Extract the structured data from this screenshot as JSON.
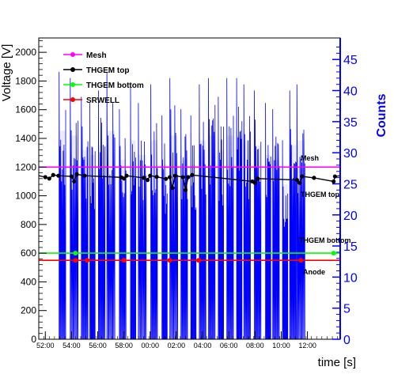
{
  "chart_data": {
    "type": "line",
    "title": "",
    "xlabel": "time [s]",
    "ylabel": "Voltage [V]",
    "y2label": "Counts",
    "x_tick_labels": [
      "52:00",
      "54:00",
      "56:00",
      "58:00",
      "00:00",
      "02:00",
      "04:00",
      "06:00",
      "08:00",
      "10:00",
      "12:00"
    ],
    "x_tick_minutes": [
      0,
      2,
      4,
      6,
      8,
      10,
      12,
      14,
      16,
      18,
      20
    ],
    "xlim_minutes": [
      -0.5,
      22.5
    ],
    "ylim": [
      0,
      2100
    ],
    "y_ticks": [
      0,
      200,
      400,
      600,
      800,
      1000,
      1200,
      1400,
      1600,
      1800,
      2000
    ],
    "y2lim": [
      0,
      48.46
    ],
    "y2_ticks": [
      0,
      5,
      10,
      15,
      20,
      25,
      30,
      35,
      40,
      45
    ],
    "legend_position": "top-left",
    "legend": [
      "Mesh",
      "THGEM top",
      "THGEM bottom",
      "SRWELL"
    ],
    "annotations": [
      "Mesh",
      "THGEM top",
      "THGEM bottom",
      "Anode"
    ],
    "colors": {
      "mesh": "#ff00ff",
      "thgem_top": "#000000",
      "thgem_bottom": "#00ff00",
      "srwell": "#ff0000",
      "counts": "#0000ff"
    },
    "series": [
      {
        "name": "Mesh",
        "color": "#ff00ff",
        "points": [
          [
            -0.5,
            1200
          ],
          [
            22.5,
            1200
          ]
        ]
      },
      {
        "name": "THGEM top",
        "color": "#000000",
        "points": [
          [
            -0.5,
            1140
          ],
          [
            0,
            1130
          ],
          [
            0.3,
            1120
          ],
          [
            0.6,
            1145
          ],
          [
            1.0,
            1140
          ],
          [
            2.0,
            1135
          ],
          [
            2.2,
            1100
          ],
          [
            2.4,
            1150
          ],
          [
            3.0,
            1140
          ],
          [
            5.8,
            1128
          ],
          [
            6.0,
            1120
          ],
          [
            6.2,
            1140
          ],
          [
            7.5,
            1125
          ],
          [
            7.8,
            1110
          ],
          [
            8.0,
            1140
          ],
          [
            8.5,
            1132
          ],
          [
            9.2,
            1118
          ],
          [
            9.5,
            1130
          ],
          [
            9.7,
            1055
          ],
          [
            9.9,
            1140
          ],
          [
            10.5,
            1130
          ],
          [
            10.7,
            1040
          ],
          [
            10.9,
            1130
          ],
          [
            11.2,
            1145
          ],
          [
            15.8,
            1100
          ],
          [
            16.0,
            1090
          ],
          [
            16.2,
            1120
          ],
          [
            19.2,
            1110
          ],
          [
            19.4,
            1090
          ],
          [
            19.6,
            1135
          ],
          [
            20.5,
            1125
          ],
          [
            22.0,
            1100
          ],
          [
            22.1,
            1135
          ],
          [
            22.5,
            1140
          ]
        ]
      },
      {
        "name": "THGEM bottom",
        "color": "#00ff00",
        "points": [
          [
            -0.5,
            600
          ],
          [
            22.5,
            600
          ]
        ],
        "markers_x": [
          2.3,
          22.0
        ]
      },
      {
        "name": "SRWELL",
        "color": "#ff0000",
        "points": [
          [
            -0.5,
            550
          ],
          [
            22.5,
            550
          ]
        ],
        "markers_x": [
          2.3,
          3.2,
          6.0,
          9.5,
          11.7,
          19.5
        ]
      }
    ],
    "counts_bursts": [
      {
        "x": 1.3,
        "w": 0.5,
        "peak": 43
      },
      {
        "x": 2.2,
        "w": 0.6,
        "peak": 42
      },
      {
        "x": 3.0,
        "w": 0.5,
        "peak": 39
      },
      {
        "x": 3.6,
        "w": 0.4,
        "peak": 38
      },
      {
        "x": 4.3,
        "w": 0.5,
        "peak": 40
      },
      {
        "x": 5.0,
        "w": 0.6,
        "peak": 43
      },
      {
        "x": 5.9,
        "w": 0.5,
        "peak": 37
      },
      {
        "x": 6.7,
        "w": 0.4,
        "peak": 41
      },
      {
        "x": 7.4,
        "w": 0.6,
        "peak": 38
      },
      {
        "x": 8.3,
        "w": 0.5,
        "peak": 41
      },
      {
        "x": 9.1,
        "w": 0.4,
        "peak": 36
      },
      {
        "x": 9.8,
        "w": 0.6,
        "peak": 42
      },
      {
        "x": 10.6,
        "w": 0.5,
        "peak": 37
      },
      {
        "x": 11.3,
        "w": 0.4,
        "peak": 36
      },
      {
        "x": 12.0,
        "w": 0.5,
        "peak": 41
      },
      {
        "x": 12.7,
        "w": 0.5,
        "peak": 42
      },
      {
        "x": 13.4,
        "w": 0.4,
        "peak": 39
      },
      {
        "x": 14.1,
        "w": 0.5,
        "peak": 42
      },
      {
        "x": 14.8,
        "w": 0.4,
        "peak": 42
      },
      {
        "x": 15.4,
        "w": 0.5,
        "peak": 41
      },
      {
        "x": 16.2,
        "w": 0.5,
        "peak": 40
      },
      {
        "x": 17.0,
        "w": 0.4,
        "peak": 38
      },
      {
        "x": 17.6,
        "w": 0.5,
        "peak": 37
      },
      {
        "x": 18.3,
        "w": 0.4,
        "peak": 32
      },
      {
        "x": 18.9,
        "w": 0.5,
        "peak": 40
      },
      {
        "x": 19.5,
        "w": 0.6,
        "peak": 41
      }
    ]
  }
}
